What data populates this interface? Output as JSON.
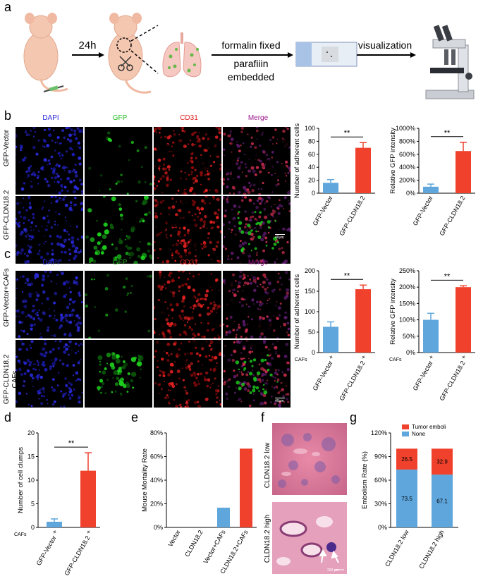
{
  "panel_labels": {
    "a": "a",
    "b": "b",
    "c": "c",
    "d": "d",
    "e": "e",
    "f": "f",
    "g": "g"
  },
  "panel_a": {
    "step1": "24h",
    "step2_line1": "formalin fixed",
    "step2_line2": "parafiiin",
    "step2_line3": "embedded",
    "step3": "visualization"
  },
  "micro_headers": [
    "DAPI",
    "GFP",
    "CD31",
    "Merge"
  ],
  "header_colors": {
    "DAPI": "#2a2ad8",
    "GFP": "#22bb22",
    "CD31": "#e02020",
    "Merge": "#9a1a8a"
  },
  "panel_b_rows": [
    "GFP-Vector",
    "GFP-CLDN18.2"
  ],
  "panel_c_rows": [
    "GFP-Vector+CAFs",
    "GFP-CLDN18.2",
    "CAFs"
  ],
  "scalebar_b": "40μm",
  "scalebar_c": "40μm",
  "panel_f_rows": [
    "CLDN18.2 low",
    "CLDN18.2 high"
  ],
  "scalebar_f": "200 μm",
  "colors": {
    "blue": "#5ea6dc",
    "red": "#f0412d"
  },
  "chart_data": [
    {
      "id": "b1",
      "type": "bar",
      "ylabel": "Number of adherent cells",
      "ylim": [
        0,
        100
      ],
      "yticks": [
        "0",
        "20",
        "40",
        "60",
        "80",
        "100"
      ],
      "categories": [
        "GFP-Vector",
        "GFP-CLDN18.2"
      ],
      "values": [
        16,
        70
      ],
      "errors": [
        5,
        8
      ],
      "sig": "**"
    },
    {
      "id": "b2",
      "type": "bar",
      "ylabel": "Relative GFP intensity",
      "ylim": [
        0,
        1000
      ],
      "yticks": [
        "0%",
        "200%",
        "400%",
        "600%",
        "800%",
        "1000%"
      ],
      "categories": [
        "GFP-Vector",
        "GFP-CLDN18.2"
      ],
      "values": [
        100,
        650
      ],
      "errors": [
        40,
        135
      ],
      "sig": "**"
    },
    {
      "id": "c1",
      "type": "bar",
      "ylabel": "Number of adherent cells",
      "ylim": [
        0,
        200
      ],
      "yticks": [
        "0",
        "50",
        "100",
        "150",
        "200"
      ],
      "categories": [
        "GFP-Vector",
        "GFP-CLDN18.2"
      ],
      "values": [
        63,
        155
      ],
      "errors": [
        12,
        10
      ],
      "sig": "**",
      "caf_label": "CAFs",
      "caf_marks": [
        "+",
        "+"
      ]
    },
    {
      "id": "c2",
      "type": "bar",
      "ylabel": "Relative GFP intensity",
      "ylim": [
        0,
        250
      ],
      "yticks": [
        "0%",
        "50%",
        "100%",
        "150%",
        "200%",
        "250%"
      ],
      "categories": [
        "GFP-Vector",
        "GFP-CLDN18.2"
      ],
      "values": [
        100,
        200
      ],
      "errors": [
        20,
        4
      ],
      "sig": "**",
      "caf_label": "CAFs",
      "caf_marks": [
        "+",
        "+"
      ]
    },
    {
      "id": "d",
      "type": "bar",
      "ylabel": "Number of cell clumps",
      "ylim": [
        0,
        20
      ],
      "yticks": [
        "0",
        "5",
        "10",
        "15",
        "20"
      ],
      "categories": [
        "GFP-Vector",
        "GFP-CLDN18.2"
      ],
      "values": [
        1.2,
        12
      ],
      "errors": [
        0.6,
        3.8
      ],
      "sig": "**",
      "caf_label": "CAFs",
      "caf_marks": [
        "+",
        "+"
      ]
    },
    {
      "id": "e",
      "type": "bar",
      "ylabel": "Mouse Mortality Rate",
      "ylim": [
        0,
        80
      ],
      "yticks": [
        "0%",
        "20%",
        "40%",
        "60%",
        "80%"
      ],
      "categories": [
        "Vector",
        "CLDN18.2",
        "Vector+CAFs",
        "CLDN18.2+CAFs"
      ],
      "values": [
        0,
        0,
        16.7,
        66.7
      ],
      "bar_colors": [
        "blue",
        "blue",
        "blue",
        "red"
      ]
    },
    {
      "id": "g",
      "type": "bar",
      "stacked": true,
      "ylabel": "Embolism Rate (%)",
      "ylim": [
        0,
        120
      ],
      "yticks": [
        "0%",
        "30%",
        "60%",
        "90%",
        "120%"
      ],
      "categories": [
        "CLDN18.2 low",
        "CLDN18.2 high"
      ],
      "series": [
        {
          "name": "None",
          "values": [
            73.5,
            67.1
          ],
          "labels": [
            "73.5",
            "67.1"
          ]
        },
        {
          "name": "Tumor emboli",
          "values": [
            26.5,
            32.9
          ],
          "labels": [
            "26.5",
            "32.9"
          ]
        }
      ],
      "legend": [
        "Tumor emboli",
        "None"
      ],
      "legend_position": "top"
    }
  ]
}
